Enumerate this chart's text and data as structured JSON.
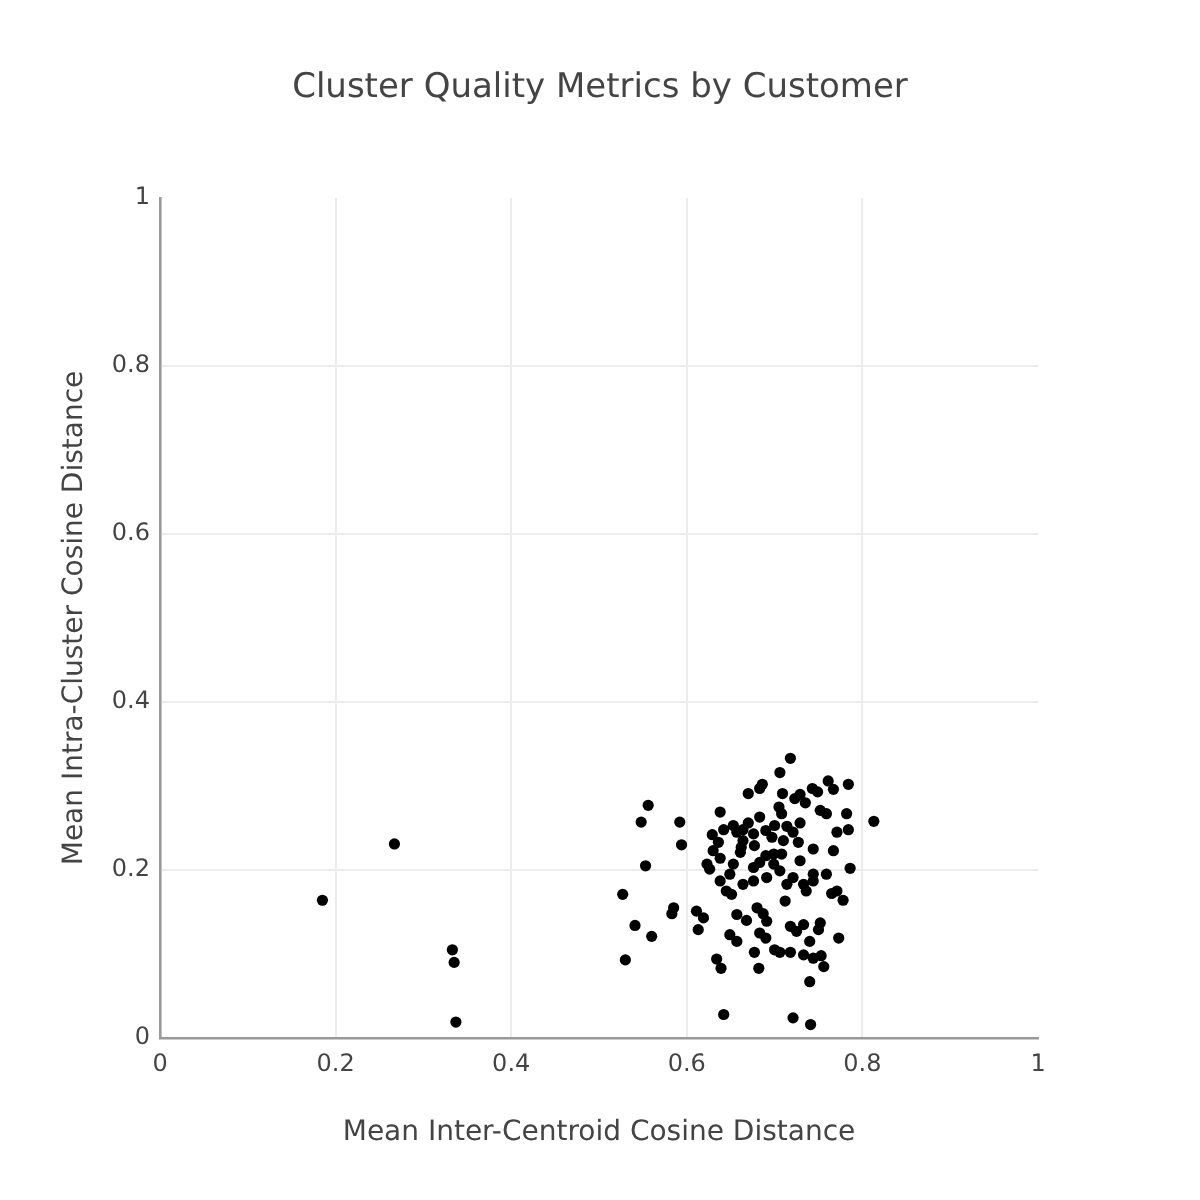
{
  "chart_data": {
    "type": "scatter",
    "title": "Cluster Quality Metrics by Customer",
    "xlabel": "Mean Inter-Centroid Cosine Distance",
    "ylabel": "Mean Intra-Cluster Cosine Distance",
    "x": [
      0.185,
      0.267,
      0.333,
      0.335,
      0.337,
      0.718,
      0.706,
      0.686,
      0.683,
      0.67,
      0.709,
      0.729,
      0.743,
      0.749,
      0.761,
      0.767,
      0.784,
      0.723,
      0.735,
      0.705,
      0.708,
      0.683,
      0.638,
      0.556,
      0.548,
      0.592,
      0.594,
      0.553,
      0.527,
      0.752,
      0.759,
      0.782,
      0.813,
      0.784,
      0.771,
      0.729,
      0.714,
      0.7,
      0.67,
      0.653,
      0.657,
      0.629,
      0.636,
      0.664,
      0.677,
      0.697,
      0.721,
      0.727,
      0.744,
      0.767,
      0.63,
      0.662,
      0.661,
      0.69,
      0.708,
      0.638,
      0.623,
      0.626,
      0.653,
      0.676,
      0.699,
      0.706,
      0.729,
      0.744,
      0.759,
      0.786,
      0.638,
      0.664,
      0.691,
      0.714,
      0.733,
      0.771,
      0.645,
      0.585,
      0.583,
      0.611,
      0.619,
      0.613,
      0.541,
      0.56,
      0.53,
      0.651,
      0.736,
      0.765,
      0.778,
      0.657,
      0.668,
      0.68,
      0.687,
      0.691,
      0.712,
      0.718,
      0.725,
      0.733,
      0.752,
      0.75,
      0.773,
      0.74,
      0.649,
      0.657,
      0.683,
      0.69,
      0.677,
      0.7,
      0.706,
      0.718,
      0.733,
      0.744,
      0.753,
      0.756,
      0.634,
      0.639,
      0.682,
      0.74,
      0.642,
      0.721,
      0.741,
      0.642,
      0.676,
      0.69,
      0.71,
      0.664,
      0.649,
      0.683,
      0.721,
      0.744,
      0.676,
      0.699
    ],
    "values": [
      0.164,
      0.231,
      0.105,
      0.09,
      0.019,
      0.333,
      0.316,
      0.302,
      0.297,
      0.291,
      0.291,
      0.29,
      0.297,
      0.293,
      0.306,
      0.296,
      0.302,
      0.285,
      0.28,
      0.275,
      0.267,
      0.263,
      0.269,
      0.277,
      0.257,
      0.257,
      0.23,
      0.205,
      0.171,
      0.271,
      0.267,
      0.267,
      0.258,
      0.248,
      0.245,
      0.256,
      0.252,
      0.253,
      0.256,
      0.253,
      0.245,
      0.242,
      0.233,
      0.235,
      0.229,
      0.239,
      0.245,
      0.233,
      0.225,
      0.223,
      0.223,
      0.227,
      0.221,
      0.217,
      0.219,
      0.214,
      0.207,
      0.201,
      0.207,
      0.203,
      0.207,
      0.199,
      0.211,
      0.195,
      0.195,
      0.202,
      0.187,
      0.183,
      0.191,
      0.183,
      0.183,
      0.175,
      0.175,
      0.155,
      0.148,
      0.151,
      0.143,
      0.129,
      0.134,
      0.121,
      0.093,
      0.171,
      0.175,
      0.172,
      0.164,
      0.147,
      0.14,
      0.155,
      0.148,
      0.139,
      0.163,
      0.133,
      0.127,
      0.135,
      0.137,
      0.129,
      0.119,
      0.115,
      0.123,
      0.115,
      0.125,
      0.119,
      0.102,
      0.105,
      0.102,
      0.102,
      0.099,
      0.095,
      0.098,
      0.085,
      0.094,
      0.083,
      0.083,
      0.067,
      0.028,
      0.024,
      0.016,
      0.248,
      0.243,
      0.247,
      0.235,
      0.248,
      0.195,
      0.209,
      0.191,
      0.187,
      0.187,
      0.219
    ],
    "color": "#000000",
    "marker": "circle",
    "xlim": [
      0,
      1
    ],
    "ylim": [
      0,
      1
    ],
    "xticks": [
      0,
      0.2,
      0.4,
      0.6,
      0.8,
      1
    ],
    "yticks": [
      0,
      0.2,
      0.4,
      0.6,
      0.8,
      1
    ],
    "grid": true
  }
}
